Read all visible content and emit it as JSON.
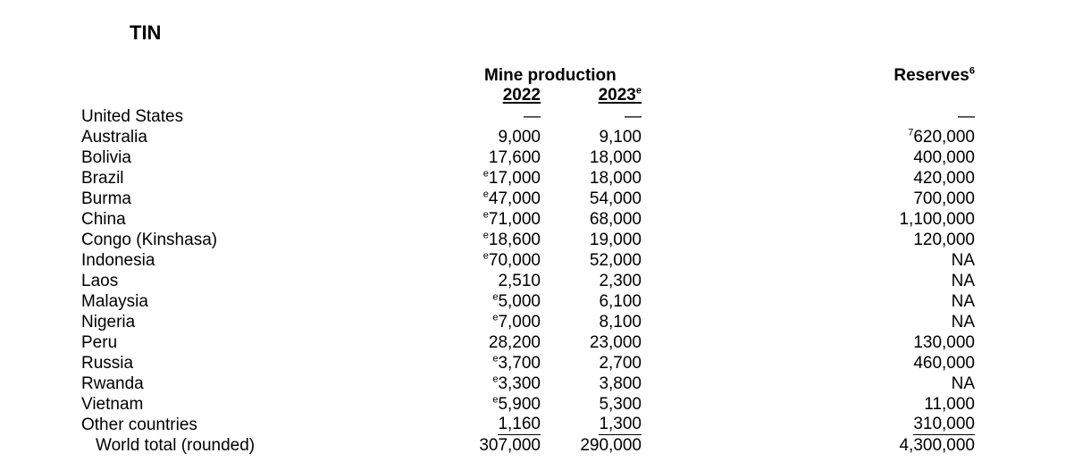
{
  "title": "TIN",
  "headers": {
    "mine_production": "Mine production",
    "year_2022": "2022",
    "year_2023": "2023",
    "year_2023_sup": "e",
    "reserves": "Reserves",
    "reserves_sup": "6"
  },
  "rows": [
    {
      "country": "United States",
      "p2022": "—",
      "p2022_sup": "",
      "p2023": "—",
      "reserves": "—",
      "reserves_sup": ""
    },
    {
      "country": "Australia",
      "p2022": "9,000",
      "p2022_sup": "",
      "p2023": "9,100",
      "reserves": "620,000",
      "reserves_sup": "7"
    },
    {
      "country": "Bolivia",
      "p2022": "17,600",
      "p2022_sup": "",
      "p2023": "18,000",
      "reserves": "400,000",
      "reserves_sup": ""
    },
    {
      "country": "Brazil",
      "p2022": "17,000",
      "p2022_sup": "e",
      "p2023": "18,000",
      "reserves": "420,000",
      "reserves_sup": ""
    },
    {
      "country": "Burma",
      "p2022": "47,000",
      "p2022_sup": "e",
      "p2023": "54,000",
      "reserves": "700,000",
      "reserves_sup": ""
    },
    {
      "country": "China",
      "p2022": "71,000",
      "p2022_sup": "e",
      "p2023": "68,000",
      "reserves": "1,100,000",
      "reserves_sup": ""
    },
    {
      "country": "Congo (Kinshasa)",
      "p2022": "18,600",
      "p2022_sup": "e",
      "p2023": "19,000",
      "reserves": "120,000",
      "reserves_sup": ""
    },
    {
      "country": "Indonesia",
      "p2022": "70,000",
      "p2022_sup": "e",
      "p2023": "52,000",
      "reserves": "NA",
      "reserves_sup": ""
    },
    {
      "country": "Laos",
      "p2022": "2,510",
      "p2022_sup": "",
      "p2023": "2,300",
      "reserves": "NA",
      "reserves_sup": ""
    },
    {
      "country": "Malaysia",
      "p2022": "5,000",
      "p2022_sup": "e",
      "p2023": "6,100",
      "reserves": "NA",
      "reserves_sup": ""
    },
    {
      "country": "Nigeria",
      "p2022": "7,000",
      "p2022_sup": "e",
      "p2023": "8,100",
      "reserves": "NA",
      "reserves_sup": ""
    },
    {
      "country": "Peru",
      "p2022": "28,200",
      "p2022_sup": "",
      "p2023": "23,000",
      "reserves": "130,000",
      "reserves_sup": ""
    },
    {
      "country": "Russia",
      "p2022": "3,700",
      "p2022_sup": "e",
      "p2023": "2,700",
      "reserves": "460,000",
      "reserves_sup": ""
    },
    {
      "country": "Rwanda",
      "p2022": "3,300",
      "p2022_sup": "e",
      "p2023": "3,800",
      "reserves": "NA",
      "reserves_sup": ""
    },
    {
      "country": "Vietnam",
      "p2022": "5,900",
      "p2022_sup": "e",
      "p2023": "5,300",
      "reserves": "11,000",
      "reserves_sup": ""
    },
    {
      "country": "Other countries",
      "p2022": "1,160",
      "p2022_sup": "",
      "p2023": "1,300",
      "reserves": "310,000",
      "reserves_sup": ""
    }
  ],
  "total": {
    "label": "World total (rounded)",
    "p2022": "307,000",
    "p2023": "290,000",
    "reserves": "4,300,000"
  }
}
